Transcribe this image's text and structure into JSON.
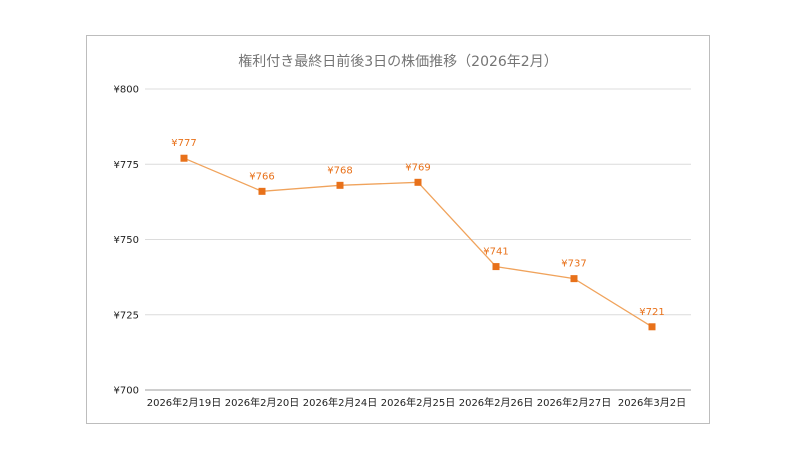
{
  "chart_data": {
    "type": "line",
    "title": "権利付き最終日前後3日の株価推移（2026年2月）",
    "xlabel": "",
    "ylabel": "",
    "categories": [
      "2026年2月19日",
      "2026年2月20日",
      "2026年2月24日",
      "2026年2月25日",
      "2026年2月26日",
      "2026年2月27日",
      "2026年3月2日"
    ],
    "series": [
      {
        "values": [
          777,
          766,
          768,
          769,
          741,
          737,
          721
        ],
        "data_labels": [
          "¥777",
          "¥766",
          "¥768",
          "¥769",
          "¥741",
          "¥737",
          "¥721"
        ]
      }
    ],
    "ylim": [
      700,
      800
    ],
    "yticks": [
      700,
      725,
      750,
      775,
      800
    ],
    "ytick_labels": [
      "¥700",
      "¥725",
      "¥750",
      "¥775",
      "¥800"
    ],
    "grid": true,
    "legend": "none",
    "colors": {
      "line": "#f0a35c",
      "marker": "#e8711a",
      "label": "#e8711a"
    }
  }
}
